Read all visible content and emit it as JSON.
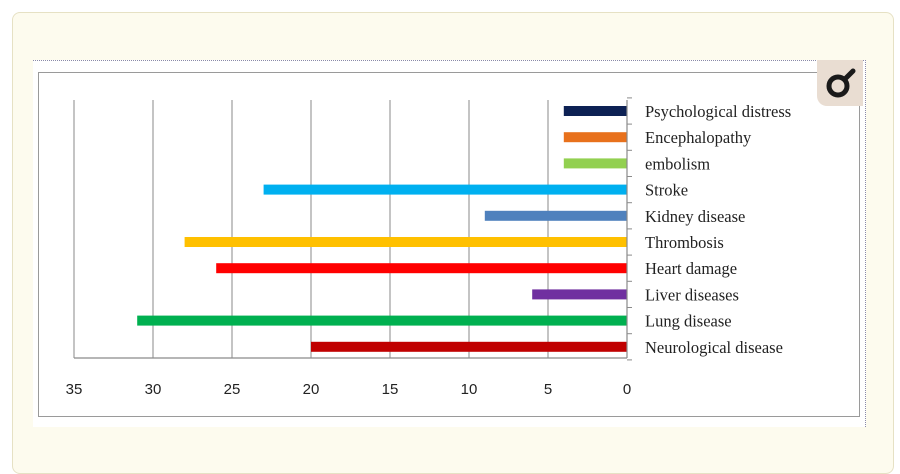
{
  "chart_data": {
    "type": "bar",
    "orientation": "horizontal",
    "x_direction": "reversed",
    "categories": [
      "Psychological distress",
      "Encephalopathy",
      "embolism",
      "Stroke",
      "Kidney disease",
      "Thrombosis",
      "Heart damage",
      "Liver diseases",
      "Lung disease",
      "Neurological disease"
    ],
    "values": [
      4,
      4,
      4,
      23,
      9,
      28,
      26,
      6,
      31,
      20
    ],
    "colors": [
      "#0d2154",
      "#e8711c",
      "#92d050",
      "#00b0f0",
      "#4f81bd",
      "#ffc000",
      "#ff0000",
      "#7030a0",
      "#00b050",
      "#c00000"
    ],
    "xlim": [
      0,
      35
    ],
    "xticks": [
      35,
      30,
      25,
      20,
      15,
      10,
      5,
      0
    ],
    "grid": true,
    "title": "",
    "xlabel": "",
    "ylabel": ""
  },
  "badge": {
    "icon": "gender-symbol-icon"
  }
}
